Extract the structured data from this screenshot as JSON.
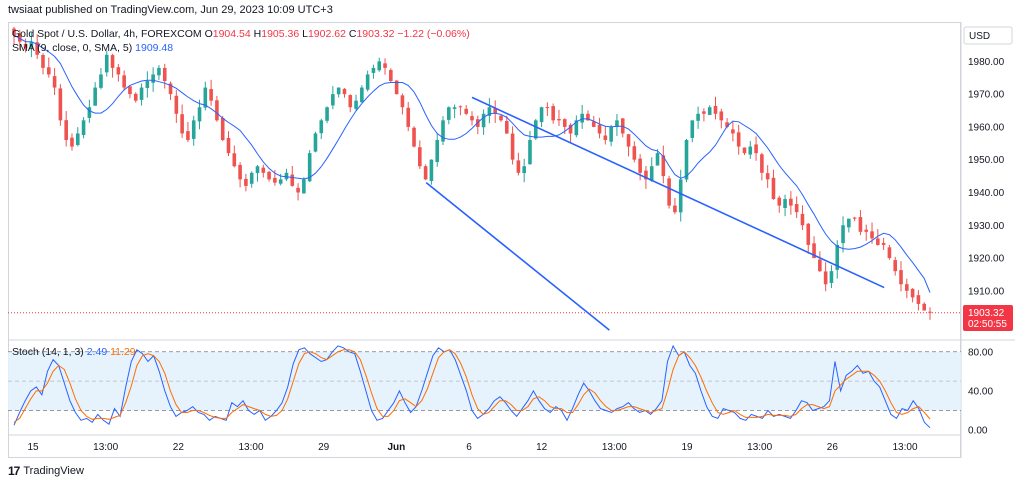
{
  "header": {
    "publisher": "twsiaat published on TradingView.com, Jun 29, 2023 10:09 UTC+3"
  },
  "legend": {
    "symbol": "Gold Spot / U.S. Dollar, 4h, FOREXCOM",
    "open_label": "O",
    "open": "1904.54",
    "high_label": "H",
    "high": "1905.36",
    "low_label": "L",
    "low": "1902.62",
    "close_label": "C",
    "close": "1903.32",
    "change": "−1.22 (−0.06%)",
    "sma_label": "SMA (9, close, 0, SMA, 5)",
    "sma_value": "1909.48"
  },
  "stoch_legend": {
    "label": "Stoch (14, 1, 3)",
    "k_value": "2.49",
    "d_value": "11.29"
  },
  "price_axis": {
    "currency": "USD",
    "last_price": "1903.32",
    "countdown": "02:50:55"
  },
  "footer": {
    "brand": "TradingView"
  },
  "colors": {
    "up": "#26a69a",
    "down": "#ef5350",
    "sma": "#2962ff",
    "stoch_k": "#2962ff",
    "stoch_d": "#ff6d00",
    "channel": "#2962ff",
    "stoch_band": "#e3f2fd",
    "price_tag": "#f23645"
  },
  "chart_data": [
    {
      "type": "candlestick",
      "title": "Gold Spot / U.S. Dollar, 4h, FOREXCOM",
      "ylim": [
        1895,
        1992
      ],
      "y_ticks": [
        "1980.00",
        "1970.00",
        "1960.00",
        "1950.00",
        "1940.00",
        "1930.00",
        "1920.00",
        "1910.00"
      ],
      "x_ticks": [
        "15",
        "13:00",
        "22",
        "13:00",
        "29",
        "Jun",
        "6",
        "12",
        "13:00",
        "19",
        "13:00",
        "26",
        "13:00"
      ],
      "close_series": [
        1988,
        1986,
        1984,
        1986,
        1982,
        1978,
        1976,
        1972,
        1962,
        1956,
        1954,
        1958,
        1962,
        1966,
        1972,
        1976,
        1982,
        1978,
        1976,
        1972,
        1970,
        1968,
        1972,
        1974,
        1976,
        1978,
        1974,
        1970,
        1964,
        1958,
        1956,
        1962,
        1966,
        1972,
        1968,
        1962,
        1956,
        1952,
        1948,
        1944,
        1942,
        1946,
        1948,
        1946,
        1944,
        1943,
        1944,
        1946,
        1942,
        1940,
        1944,
        1952,
        1958,
        1962,
        1966,
        1970,
        1972,
        1970,
        1966,
        1968,
        1972,
        1976,
        1978,
        1980,
        1978,
        1974,
        1970,
        1966,
        1960,
        1954,
        1948,
        1944,
        1950,
        1956,
        1962,
        1966,
        1966,
        1966,
        1964,
        1962,
        1960,
        1964,
        1966,
        1964,
        1962,
        1958,
        1950,
        1946,
        1948,
        1956,
        1962,
        1966,
        1966,
        1962,
        1962,
        1960,
        1958,
        1962,
        1964,
        1962,
        1960,
        1958,
        1956,
        1960,
        1962,
        1958,
        1954,
        1950,
        1946,
        1944,
        1948,
        1952,
        1945,
        1936,
        1934,
        1944,
        1956,
        1962,
        1964,
        1964,
        1966,
        1964,
        1962,
        1960,
        1958,
        1954,
        1952,
        1954,
        1952,
        1946,
        1944,
        1938,
        1936,
        1938,
        1936,
        1934,
        1930,
        1924,
        1920,
        1916,
        1912,
        1916,
        1924,
        1930,
        1932,
        1932,
        1928,
        1928,
        1926,
        1924,
        1924,
        1920,
        1916,
        1912,
        1910,
        1908,
        1906,
        1904,
        1903.32
      ],
      "sma": {
        "name": "SMA (9, close, 0, SMA, 5)",
        "last": 1909.48
      },
      "channel": {
        "upper": [
          [
            1,
            1969
          ],
          [
            1.9,
            1911
          ]
        ],
        "lower": [
          [
            0.9,
            1943
          ],
          [
            1.3,
            1898
          ]
        ]
      },
      "last_price": 1903.32
    },
    {
      "type": "line",
      "title": "Stoch (14, 1, 3)",
      "ylim": [
        -5,
        92
      ],
      "y_ticks": [
        "80.00",
        "40.00",
        "0.00"
      ],
      "band": [
        20,
        80
      ],
      "midline": 50,
      "series": [
        {
          "name": "%K",
          "values": [
            5,
            18,
            30,
            40,
            44,
            36,
            60,
            72,
            66,
            48,
            30,
            18,
            10,
            12,
            8,
            16,
            10,
            6,
            22,
            14,
            44,
            70,
            82,
            78,
            70,
            76,
            60,
            40,
            24,
            14,
            18,
            20,
            24,
            18,
            16,
            10,
            14,
            12,
            10,
            28,
            24,
            30,
            20,
            16,
            20,
            10,
            14,
            20,
            28,
            44,
            68,
            82,
            84,
            78,
            74,
            70,
            72,
            80,
            86,
            84,
            80,
            78,
            60,
            40,
            20,
            10,
            12,
            20,
            28,
            40,
            28,
            18,
            24,
            40,
            58,
            76,
            84,
            80,
            82,
            72,
            56,
            40,
            20,
            12,
            16,
            22,
            30,
            34,
            28,
            20,
            14,
            22,
            30,
            40,
            30,
            22,
            18,
            24,
            20,
            10,
            22,
            36,
            48,
            40,
            30,
            22,
            20,
            18,
            22,
            24,
            28,
            22,
            18,
            20,
            16,
            22,
            30,
            70,
            86,
            76,
            80,
            66,
            58,
            40,
            24,
            14,
            12,
            22,
            20,
            18,
            12,
            10,
            16,
            14,
            12,
            20,
            14,
            16,
            14,
            12,
            20,
            30,
            28,
            20,
            22,
            24,
            30,
            70,
            40,
            56,
            60,
            66,
            58,
            60,
            50,
            44,
            30,
            16,
            12,
            22,
            20,
            30,
            22,
            8,
            2.49
          ]
        },
        {
          "name": "%D",
          "values": [
            8,
            12,
            22,
            32,
            40,
            40,
            48,
            60,
            66,
            62,
            48,
            32,
            20,
            14,
            11,
            12,
            12,
            11,
            13,
            15,
            28,
            45,
            66,
            76,
            78,
            76,
            70,
            58,
            40,
            26,
            18,
            18,
            20,
            20,
            18,
            15,
            13,
            12,
            12,
            18,
            22,
            26,
            24,
            22,
            20,
            16,
            14,
            15,
            20,
            32,
            50,
            68,
            78,
            80,
            78,
            74,
            72,
            76,
            80,
            82,
            82,
            80,
            72,
            56,
            38,
            22,
            14,
            14,
            20,
            30,
            32,
            28,
            24,
            30,
            42,
            58,
            74,
            80,
            82,
            78,
            68,
            54,
            36,
            22,
            16,
            18,
            24,
            30,
            30,
            26,
            20,
            20,
            24,
            32,
            34,
            30,
            24,
            22,
            22,
            18,
            18,
            26,
            36,
            42,
            38,
            30,
            24,
            20,
            20,
            22,
            24,
            24,
            22,
            20,
            18,
            20,
            22,
            40,
            62,
            76,
            80,
            74,
            66,
            54,
            40,
            28,
            18,
            16,
            18,
            20,
            16,
            13,
            13,
            13,
            14,
            16,
            15,
            15,
            15,
            14,
            16,
            22,
            26,
            26,
            24,
            22,
            24,
            40,
            46,
            52,
            56,
            60,
            60,
            60,
            56,
            50,
            40,
            28,
            18,
            16,
            18,
            22,
            24,
            18,
            11.29
          ]
        }
      ]
    }
  ]
}
